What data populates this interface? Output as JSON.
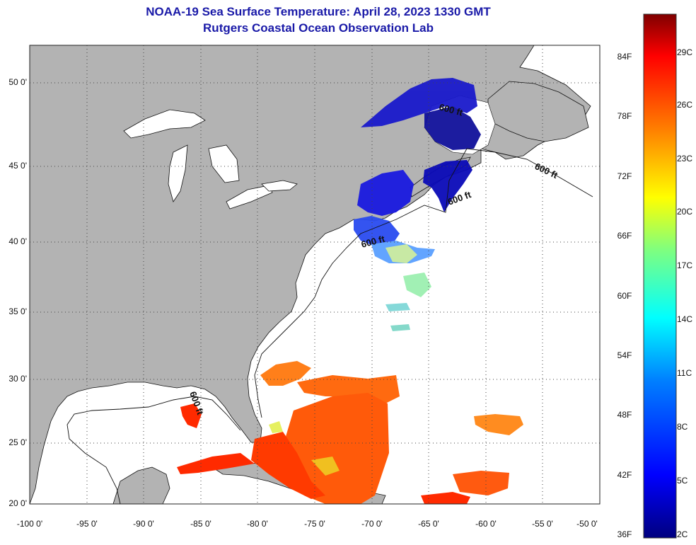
{
  "header": {
    "title": "NOAA-19 Sea Surface Temperature:  April 28, 2023 1330 GMT",
    "subtitle": "Rutgers Coastal Ocean Observation Lab"
  },
  "map": {
    "latitude_labels": [
      "50 0'",
      "45 0'",
      "40 0'",
      "35 0'",
      "30 0'",
      "25 0'",
      "20 0'"
    ],
    "longitude_labels": [
      "-100 0'",
      "-95 0'",
      "-90 0'",
      "-85 0'",
      "-80 0'",
      "-75 0'",
      "-70 0'",
      "-65 0'",
      "-60 0'",
      "-55 0'",
      "-50 0'"
    ],
    "lat_range": [
      20,
      52.5
    ],
    "lon_range": [
      -100,
      -50
    ],
    "isobath_label": "600 ft",
    "colors": {
      "land": "#b3b3b3",
      "ocean": "#ffffff",
      "grid": "#555555"
    }
  },
  "colorbar": {
    "fahrenheit_labels": [
      "84F",
      "78F",
      "72F",
      "66F",
      "60F",
      "54F",
      "48F",
      "42F",
      "36F"
    ],
    "celsius_labels": [
      "29C",
      "26C",
      "23C",
      "20C",
      "17C",
      "14C",
      "11C",
      "8C",
      "5C",
      "2C"
    ],
    "colors": [
      "#00007f",
      "#0000ff",
      "#007fff",
      "#00ffff",
      "#7fff7f",
      "#ffff00",
      "#ff7f00",
      "#ff0000",
      "#7f0000"
    ]
  }
}
